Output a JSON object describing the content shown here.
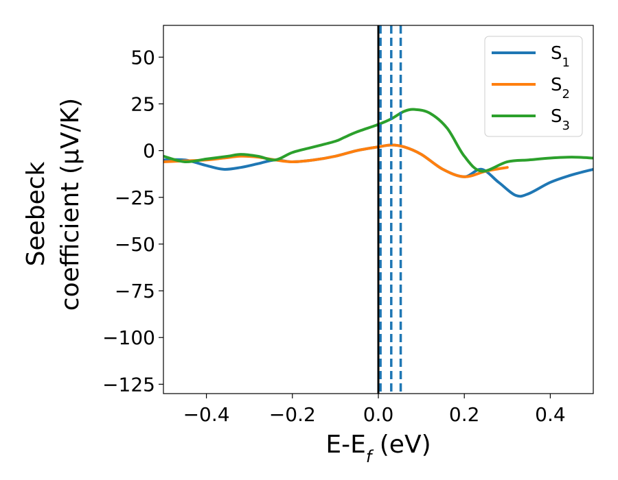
{
  "chart_data": {
    "type": "line",
    "xlabel": {
      "main": "E-E",
      "sub": "f",
      "rest": " (eV)"
    },
    "ylabel": {
      "line1": "Seebeck",
      "line2": "coefficient  (μV/K)"
    },
    "xlim": [
      -0.5,
      0.5
    ],
    "ylim": [
      -130,
      67
    ],
    "xticks": [
      -0.4,
      -0.2,
      0.0,
      0.2,
      0.4
    ],
    "xtick_labels": [
      "−0.4",
      "−0.2",
      "0.0",
      "0.2",
      "0.4"
    ],
    "yticks": [
      50,
      25,
      0,
      -25,
      -50,
      -75,
      -100,
      -125
    ],
    "ytick_labels": [
      "50",
      "25",
      "0",
      "−25",
      "−50",
      "−75",
      "−100",
      "−125"
    ],
    "grid": false,
    "legend_placement": "top-right",
    "vertical_lines": [
      {
        "x": 0.0,
        "style": "solid",
        "color": "#000000"
      },
      {
        "x": 0.005,
        "style": "dashed",
        "color": "#1f77b4"
      },
      {
        "x": 0.03,
        "style": "dashed",
        "color": "#1f77b4"
      },
      {
        "x": 0.052,
        "style": "dashed",
        "color": "#1f77b4"
      }
    ],
    "series": [
      {
        "name": "S",
        "subscript": "1",
        "color": "#1f77b4",
        "x": [
          -0.5,
          -0.45,
          -0.4,
          -0.36,
          -0.32,
          -0.28,
          -0.24,
          -0.2,
          -0.15,
          -0.1,
          -0.05,
          0.0,
          0.03,
          0.06,
          0.1,
          0.15,
          0.2,
          0.24,
          0.28,
          0.32,
          0.35,
          0.4,
          0.45,
          0.5
        ],
        "y": [
          -5,
          -5,
          -8,
          -10,
          -9,
          -7,
          -5,
          -6,
          -5,
          -3,
          0,
          2,
          3,
          2,
          -2,
          -10,
          -14,
          -10,
          -17,
          -24,
          -23,
          -17,
          -13,
          -10
        ]
      },
      {
        "name": "S",
        "subscript": "2",
        "color": "#ff7f0e",
        "x": [
          -0.5,
          -0.45,
          -0.4,
          -0.36,
          -0.32,
          -0.28,
          -0.24,
          -0.2,
          -0.15,
          -0.1,
          -0.05,
          0.0,
          0.03,
          0.06,
          0.1,
          0.15,
          0.2,
          0.25,
          0.3
        ],
        "y": [
          -6,
          -5.5,
          -5,
          -4,
          -3,
          -3.5,
          -5,
          -6,
          -5,
          -3,
          0,
          2,
          3,
          2,
          -2,
          -10,
          -14,
          -11,
          -9
        ]
      },
      {
        "name": "S",
        "subscript": "3",
        "color": "#2ca02c",
        "x": [
          -0.5,
          -0.45,
          -0.4,
          -0.35,
          -0.32,
          -0.28,
          -0.24,
          -0.2,
          -0.15,
          -0.1,
          -0.08,
          -0.05,
          0.0,
          0.03,
          0.06,
          0.085,
          0.12,
          0.16,
          0.2,
          0.24,
          0.3,
          0.35,
          0.4,
          0.45,
          0.5
        ],
        "y": [
          -3,
          -6,
          -4.5,
          -3,
          -2,
          -3,
          -5,
          -1,
          2,
          5,
          7,
          10,
          14,
          17,
          21,
          22,
          20,
          12,
          -3,
          -11,
          -6,
          -5,
          -4,
          -3.5,
          -4
        ]
      }
    ]
  }
}
